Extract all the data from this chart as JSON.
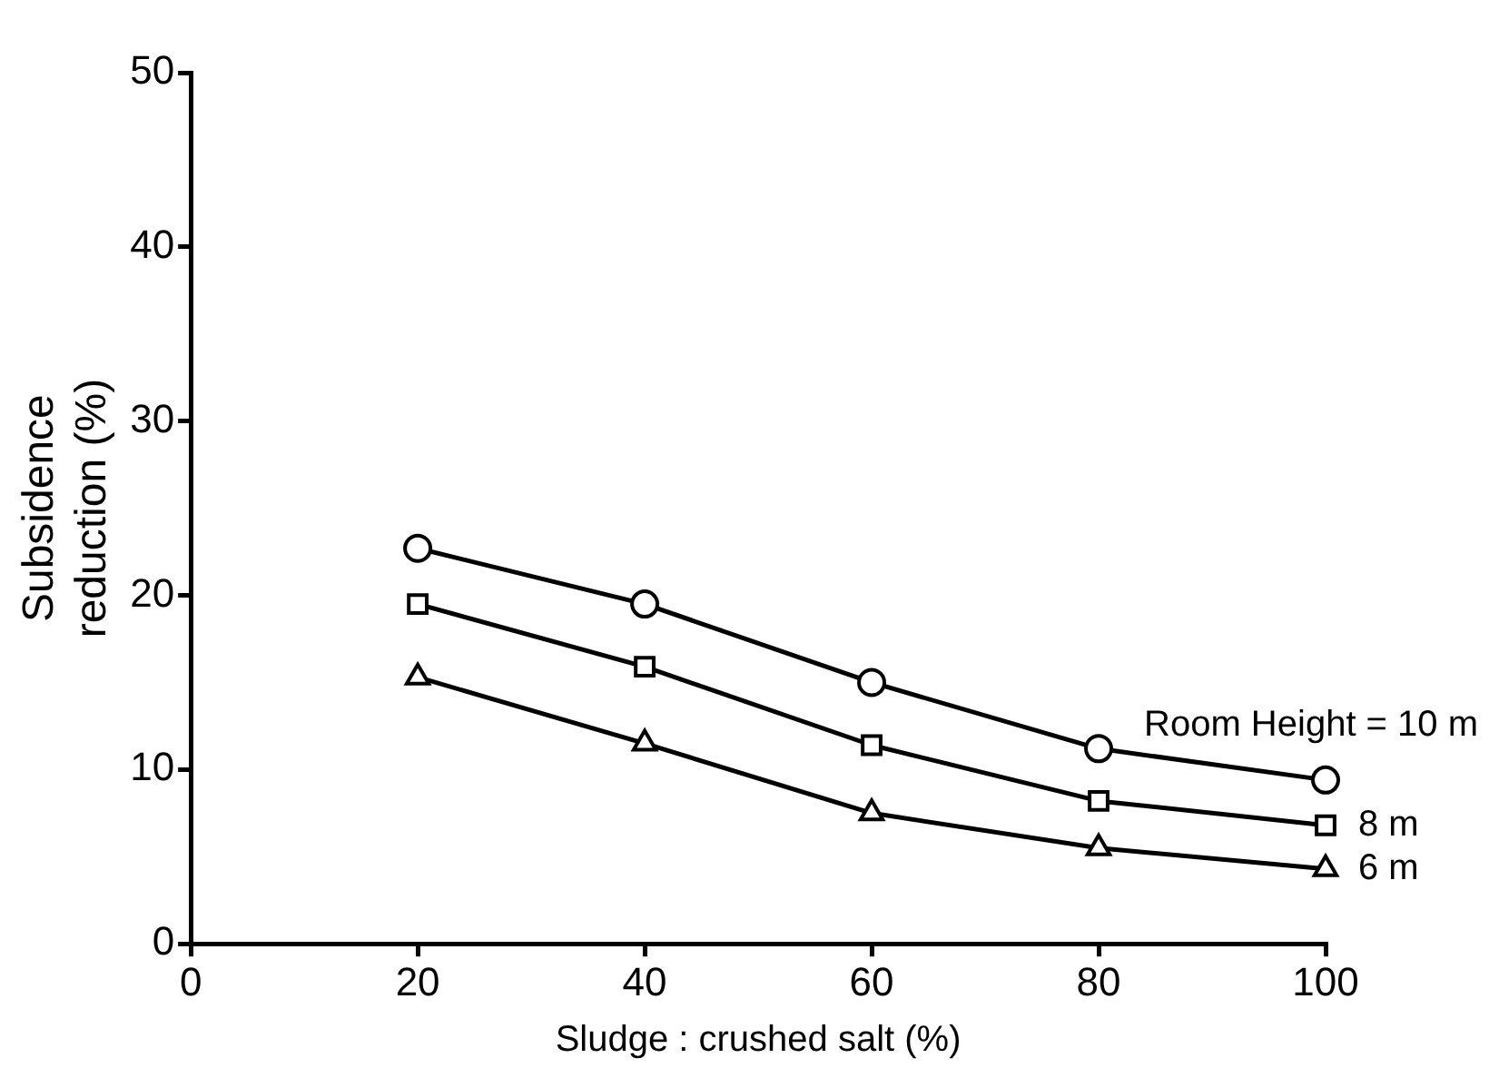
{
  "chart_data": {
    "type": "line",
    "xlabel": "Sludge : crushed salt (%)",
    "ylabel": "Subsidence reduction (%)",
    "x": [
      20,
      40,
      60,
      80,
      100
    ],
    "series": [
      {
        "name": "Room Height = 10 m",
        "color": "#000000",
        "marker": "circle",
        "values": [
          22.7,
          19.5,
          15.0,
          11.2,
          9.4
        ]
      },
      {
        "name": "8 m",
        "color": "#000000",
        "marker": "square",
        "values": [
          19.5,
          15.9,
          11.4,
          8.2,
          6.8
        ]
      },
      {
        "name": "6 m",
        "color": "#000000",
        "marker": "triangle",
        "values": [
          15.3,
          11.5,
          7.5,
          5.5,
          4.3
        ]
      }
    ],
    "xlim": [
      0,
      100
    ],
    "xticks": [
      0,
      20,
      40,
      60,
      80,
      100
    ],
    "ylim": [
      0,
      50
    ],
    "yticks": [
      0,
      10,
      20,
      30,
      40,
      50
    ],
    "grid": false,
    "legend": false,
    "line_style": "solid"
  }
}
